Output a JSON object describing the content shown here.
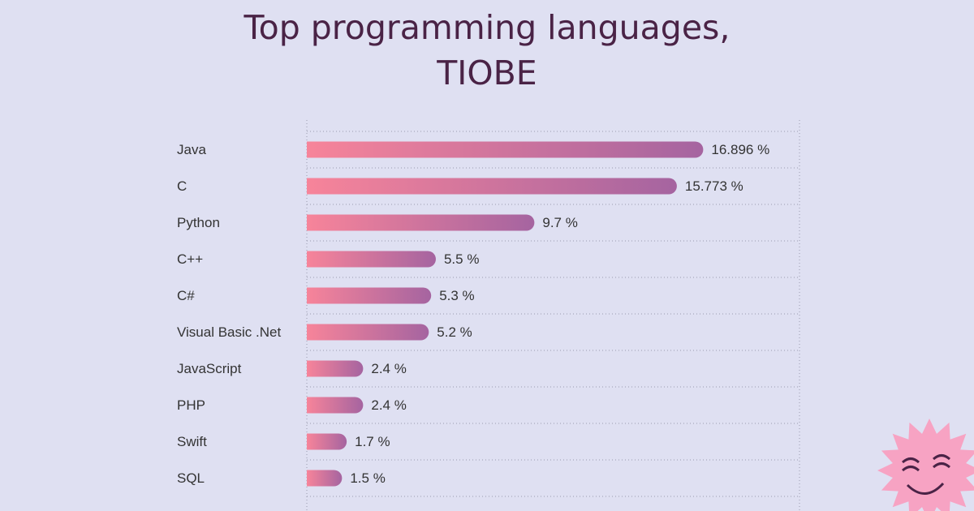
{
  "chart_data": {
    "type": "hbar",
    "title": "Top programming languages, TIOBE",
    "categories": [
      "Java",
      "C",
      "Python",
      "C++",
      "C#",
      "Visual Basic .Net",
      "JavaScript",
      "PHP",
      "Swift",
      "SQL"
    ],
    "values": [
      16.896,
      15.773,
      9.7,
      5.5,
      5.3,
      5.2,
      2.4,
      2.4,
      1.7,
      1.5
    ],
    "value_labels": [
      "16.896 %",
      "15.773 %",
      "9.7 %",
      "5.5 %",
      "5.3 %",
      "5.2 %",
      "2.4 %",
      "2.4 %",
      "1.7 %",
      "1.5 %"
    ],
    "colors": [
      "#f7849a",
      "#a564a0"
    ],
    "xlim": [
      0,
      21
    ]
  }
}
